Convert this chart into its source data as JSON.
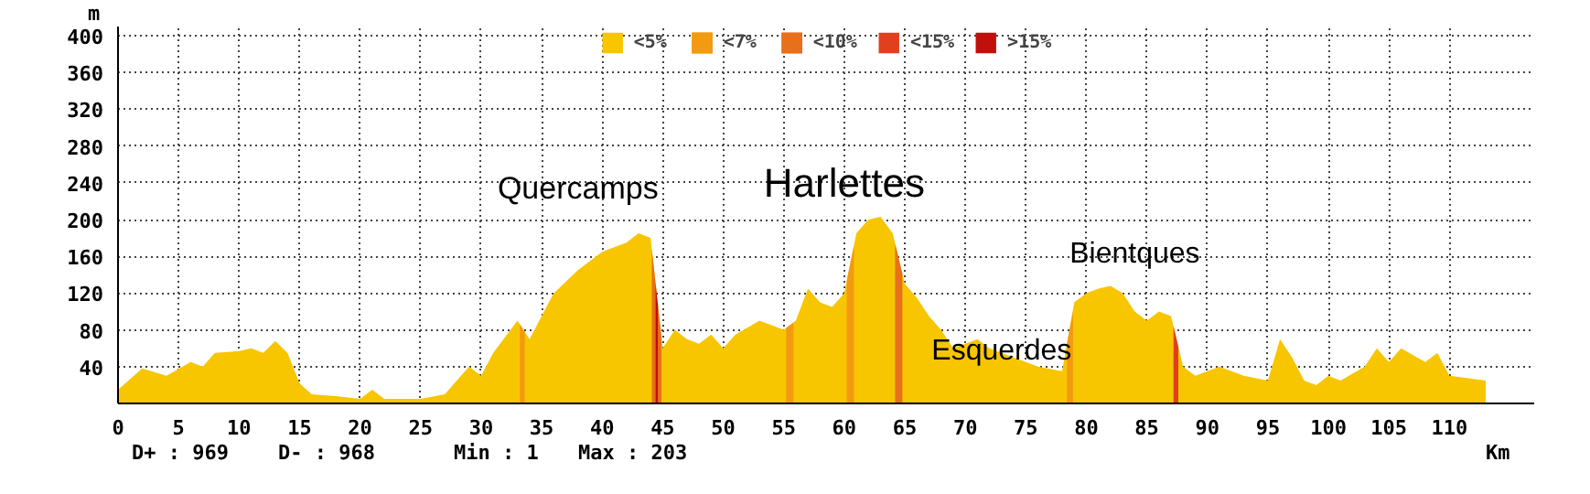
{
  "chart_data": {
    "type": "area",
    "xlabel": "Km",
    "ylabel": "m",
    "xlim": [
      0,
      117
    ],
    "ylim": [
      0,
      410
    ],
    "xticks": [
      0,
      5,
      10,
      15,
      20,
      25,
      30,
      35,
      40,
      45,
      50,
      55,
      60,
      65,
      70,
      75,
      80,
      85,
      90,
      95,
      100,
      105,
      110
    ],
    "yticks": [
      40,
      80,
      120,
      160,
      200,
      240,
      280,
      320,
      360,
      400
    ],
    "grid": true,
    "legend": "top",
    "series": [
      {
        "name": "<5%",
        "color": "#f7c600",
        "x": [
          0,
          2,
          4,
          6,
          7,
          8,
          10,
          11,
          12,
          13,
          14,
          15,
          16,
          18,
          20,
          21,
          22,
          25,
          27,
          29,
          30,
          31,
          33,
          34,
          35,
          36,
          38,
          40,
          42,
          43,
          44,
          45,
          46,
          47,
          48,
          49,
          50,
          51,
          53,
          55,
          56,
          57,
          58,
          59,
          60,
          61,
          62,
          63,
          64,
          65,
          66,
          67,
          68,
          69,
          70,
          71,
          72,
          74,
          76,
          78,
          79,
          80,
          81,
          82,
          83,
          84,
          85,
          86,
          87,
          88,
          89,
          91,
          93,
          95,
          96,
          97,
          98,
          99,
          100,
          101,
          103,
          104,
          105,
          106,
          108,
          109,
          110,
          113
        ],
        "values": [
          15,
          38,
          30,
          45,
          40,
          55,
          57,
          60,
          55,
          68,
          55,
          22,
          10,
          8,
          5,
          15,
          5,
          5,
          10,
          40,
          30,
          55,
          90,
          70,
          95,
          120,
          145,
          165,
          175,
          185,
          180,
          60,
          80,
          70,
          65,
          75,
          60,
          75,
          90,
          80,
          90,
          125,
          110,
          105,
          120,
          185,
          200,
          203,
          185,
          130,
          115,
          95,
          80,
          60,
          65,
          70,
          60,
          50,
          40,
          35,
          110,
          120,
          125,
          128,
          120,
          100,
          90,
          100,
          95,
          40,
          30,
          40,
          30,
          25,
          70,
          50,
          25,
          20,
          30,
          25,
          40,
          60,
          45,
          60,
          45,
          55,
          30,
          25
        ]
      },
      {
        "name": "<7%",
        "color": "#f29a10",
        "x": [
          33.2,
          33.6,
          null,
          55.2,
          55.8,
          null,
          60.2,
          60.8,
          null,
          78.4,
          78.9
        ],
        "values": [
          86,
          78,
          null,
          82,
          88,
          null,
          133,
          172,
          null,
          65,
          100
        ]
      },
      {
        "name": "<10%",
        "color": "#e8701a",
        "x": [
          44.1,
          44.4,
          null,
          44.6,
          44.9,
          null,
          64.2,
          64.8
        ],
        "values": [
          168,
          132,
          null,
          108,
          72,
          null,
          174,
          141
        ]
      },
      {
        "name": "<15%",
        "color": "#e0401e",
        "x": [
          87.2,
          87.6
        ],
        "values": [
          84,
          62
        ]
      },
      {
        "name": ">15%",
        "color": "#c0100c",
        "x": [
          44.4,
          44.6
        ],
        "values": [
          132,
          108
        ]
      }
    ],
    "annotations": [
      "Quercamps",
      "Harlettes",
      "Bientques",
      "Esquerdes",
      "D+ : 969",
      "D- : 968",
      "Min : 1",
      "Max : 203"
    ]
  }
}
